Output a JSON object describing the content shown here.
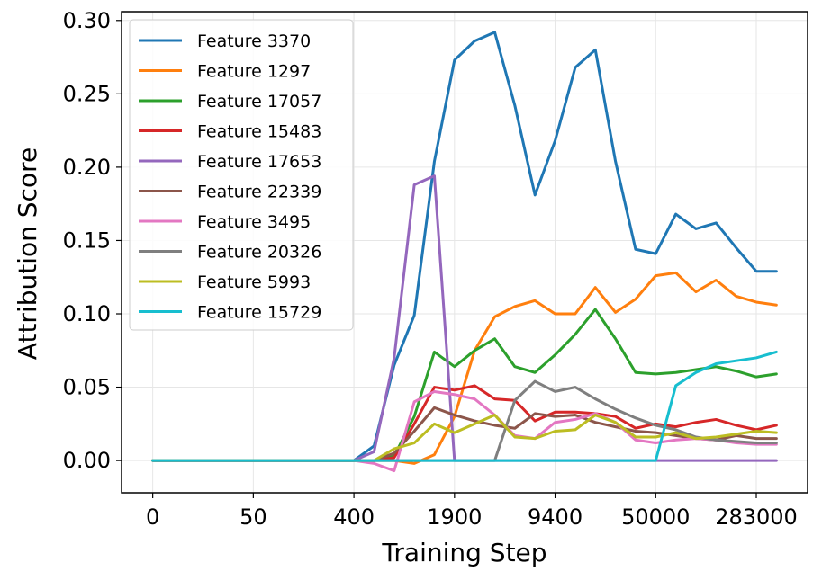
{
  "chart_data": {
    "type": "line",
    "title": "",
    "xlabel": "Training Step",
    "ylabel": "Attribution Score",
    "ylim": [
      -0.022,
      0.306
    ],
    "x_tick_labels": [
      "0",
      "50",
      "400",
      "1900",
      "9400",
      "50000",
      "283000"
    ],
    "x_tick_positions": [
      0,
      5,
      10,
      15,
      20,
      25,
      30
    ],
    "y_ticks": [
      0.0,
      0.05,
      0.1,
      0.15,
      0.2,
      0.25,
      0.3
    ],
    "y_tick_labels": [
      "0.00",
      "0.05",
      "0.10",
      "0.15",
      "0.20",
      "0.25",
      "0.30"
    ],
    "grid": true,
    "legend_position": "top-left",
    "x_index": [
      0,
      1,
      2,
      3,
      4,
      5,
      6,
      7,
      8,
      9,
      10,
      11,
      12,
      13,
      14,
      15,
      16,
      17,
      18,
      19,
      20,
      21,
      22,
      23,
      24,
      25,
      26,
      27,
      28,
      29,
      30,
      31
    ],
    "series": [
      {
        "name": "Feature 3370",
        "color": "#1f77b4",
        "values": [
          0,
          0,
          0,
          0,
          0,
          0,
          0,
          0,
          0,
          0,
          0,
          0.01,
          0.065,
          0.099,
          0.204,
          0.273,
          0.286,
          0.292,
          0.242,
          0.181,
          0.218,
          0.268,
          0.28,
          0.204,
          0.144,
          0.141,
          0.168,
          0.158,
          0.162,
          0.145,
          0.129,
          0.129
        ]
      },
      {
        "name": "Feature 1297",
        "color": "#ff7f0e",
        "values": [
          0,
          0,
          0,
          0,
          0,
          0,
          0,
          0,
          0,
          0,
          0,
          0,
          0,
          -0.002,
          0.004,
          0.03,
          0.075,
          0.098,
          0.105,
          0.109,
          0.1,
          0.1,
          0.118,
          0.101,
          0.11,
          0.126,
          0.128,
          0.115,
          0.123,
          0.112,
          0.108,
          0.106
        ]
      },
      {
        "name": "Feature 17057",
        "color": "#2ca02c",
        "values": [
          0,
          0,
          0,
          0,
          0,
          0,
          0,
          0,
          0,
          0,
          0,
          0,
          0.003,
          0.03,
          0.074,
          0.064,
          0.075,
          0.083,
          0.064,
          0.06,
          0.072,
          0.086,
          0.103,
          0.083,
          0.06,
          0.059,
          0.06,
          0.062,
          0.064,
          0.061,
          0.057,
          0.059
        ]
      },
      {
        "name": "Feature 15483",
        "color": "#d62728",
        "values": [
          0,
          0,
          0,
          0,
          0,
          0,
          0,
          0,
          0,
          0,
          0,
          0,
          0.002,
          0.025,
          0.05,
          0.048,
          0.051,
          0.042,
          0.041,
          0.027,
          0.033,
          0.033,
          0.032,
          0.03,
          0.022,
          0.025,
          0.023,
          0.026,
          0.028,
          0.024,
          0.021,
          0.024
        ]
      },
      {
        "name": "Feature 17653",
        "color": "#9467bd",
        "values": [
          0,
          0,
          0,
          0,
          0,
          0,
          0,
          0,
          0,
          0,
          0,
          0.006,
          0.07,
          0.188,
          0.194,
          0,
          0,
          0,
          0,
          0,
          0,
          0,
          0,
          0,
          0,
          0,
          0,
          0,
          0,
          0,
          0,
          0
        ]
      },
      {
        "name": "Feature 22339",
        "color": "#8c564b",
        "values": [
          0,
          0,
          0,
          0,
          0,
          0,
          0,
          0,
          0,
          0,
          0,
          0,
          0.005,
          0.02,
          0.036,
          0.031,
          0.027,
          0.024,
          0.022,
          0.032,
          0.03,
          0.031,
          0.026,
          0.023,
          0.02,
          0.019,
          0.017,
          0.015,
          0.014,
          0.017,
          0.015,
          0.015
        ]
      },
      {
        "name": "Feature 3495",
        "color": "#e377c2",
        "values": [
          0,
          0,
          0,
          0,
          0,
          0,
          0,
          0,
          0,
          0,
          0,
          -0.002,
          -0.007,
          0.04,
          0.047,
          0.045,
          0.042,
          0.031,
          0.017,
          0.015,
          0.026,
          0.028,
          0.032,
          0.026,
          0.014,
          0.012,
          0.014,
          0.015,
          0.014,
          0.012,
          0.011,
          0.011
        ]
      },
      {
        "name": "Feature 20326",
        "color": "#7f7f7f",
        "values": [
          0,
          0,
          0,
          0,
          0,
          0,
          0,
          0,
          0,
          0,
          0,
          0,
          0,
          0,
          0,
          0,
          0,
          0,
          0.041,
          0.054,
          0.047,
          0.05,
          0.042,
          0.035,
          0.029,
          0.024,
          0.021,
          0.016,
          0.014,
          0.013,
          0.012,
          0.012
        ]
      },
      {
        "name": "Feature 5993",
        "color": "#bcbd22",
        "values": [
          0,
          0,
          0,
          0,
          0,
          0,
          0,
          0,
          0,
          0,
          0,
          0,
          0.008,
          0.012,
          0.025,
          0.019,
          0.025,
          0.031,
          0.016,
          0.015,
          0.02,
          0.021,
          0.031,
          0.026,
          0.016,
          0.016,
          0.019,
          0.015,
          0.016,
          0.018,
          0.02,
          0.019
        ]
      },
      {
        "name": "Feature 15729",
        "color": "#17becf",
        "values": [
          0,
          0,
          0,
          0,
          0,
          0,
          0,
          0,
          0,
          0,
          0,
          0,
          0,
          0,
          0,
          0,
          0,
          0,
          0,
          0,
          0,
          0,
          0,
          0,
          0,
          0,
          0.051,
          0.06,
          0.066,
          0.068,
          0.07,
          0.074
        ]
      }
    ]
  }
}
